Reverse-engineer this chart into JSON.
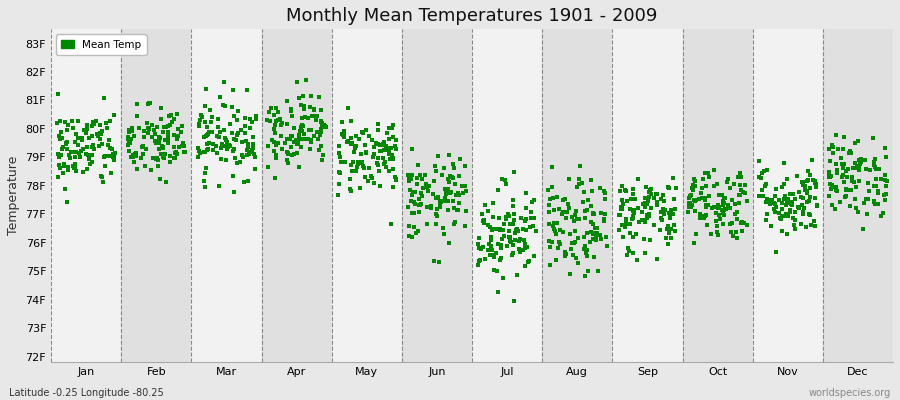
{
  "title": "Monthly Mean Temperatures 1901 - 2009",
  "ylabel": "Temperature",
  "months": [
    "Jan",
    "Feb",
    "Mar",
    "Apr",
    "May",
    "Jun",
    "Jul",
    "Aug",
    "Sep",
    "Oct",
    "Nov",
    "Dec"
  ],
  "yticks": [
    72,
    73,
    74,
    75,
    76,
    77,
    78,
    79,
    80,
    81,
    82,
    83
  ],
  "ytick_labels": [
    "72F",
    "73F",
    "74F",
    "75F",
    "76F",
    "77F",
    "78F",
    "79F",
    "80F",
    "81F",
    "82F",
    "83F"
  ],
  "ylim": [
    71.8,
    83.5
  ],
  "dot_color": "#008800",
  "dot_size": 6,
  "background_color": "#e8e8e8",
  "band_color_even": "#f2f2f2",
  "band_color_odd": "#e0e0e0",
  "legend_label": "Mean Temp",
  "subtitle_left": "Latitude -0.25 Longitude -80.25",
  "subtitle_right": "worldspecies.org",
  "title_fontsize": 13,
  "axis_label_fontsize": 9,
  "tick_fontsize": 8,
  "monthly_means": [
    79.3,
    79.5,
    79.7,
    80.0,
    79.1,
    77.5,
    76.4,
    76.5,
    77.0,
    77.4,
    77.5,
    78.3
  ],
  "monthly_stds": [
    0.7,
    0.65,
    0.7,
    0.65,
    0.7,
    0.75,
    0.85,
    0.85,
    0.7,
    0.65,
    0.65,
    0.7
  ],
  "n_years": 109
}
